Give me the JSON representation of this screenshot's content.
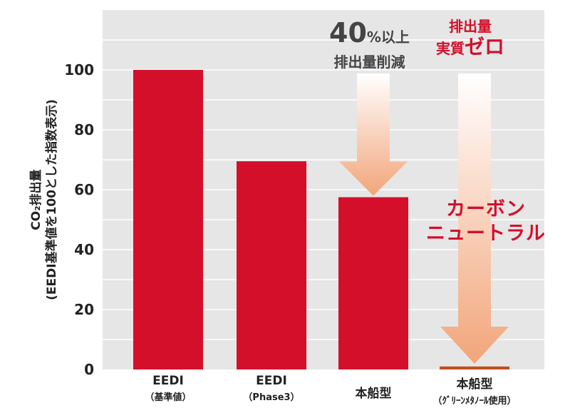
{
  "chart_data": {
    "type": "bar",
    "categories": [
      {
        "name": "EEDI",
        "sub": "（基準値）"
      },
      {
        "name": "EEDI",
        "sub": "（Phase3）"
      },
      {
        "name": "本船型",
        "sub": ""
      },
      {
        "name": "本船型",
        "sub": "（ｸﾞﾘｰﾝﾒﾀﾉｰﾙ使用）"
      }
    ],
    "values": [
      100,
      69.5,
      57.5,
      1
    ],
    "ylim": [
      0,
      120
    ],
    "yticks": [
      0,
      20,
      40,
      60,
      80,
      100
    ],
    "ylabel_line1": "CO₂排出量",
    "ylabel_line2": "(EEDI基準値を100とした指数表示)",
    "grid": true,
    "colors": {
      "bar": "#d30f2a",
      "last_bar": "#c0501a",
      "plot_bg": "#e6e6e6",
      "grid": "#ffffff",
      "arrow": "#f2a57a"
    }
  },
  "annotations": {
    "reduction_line1_num": "40",
    "reduction_line1_rest": "%以上",
    "reduction_line2": "排出量削減",
    "zero_line1": "排出量",
    "zero_line2_a": "実質",
    "zero_line2_b": "ゼロ",
    "neutral_line1": "カーボン",
    "neutral_line2": "ニュートラル"
  }
}
